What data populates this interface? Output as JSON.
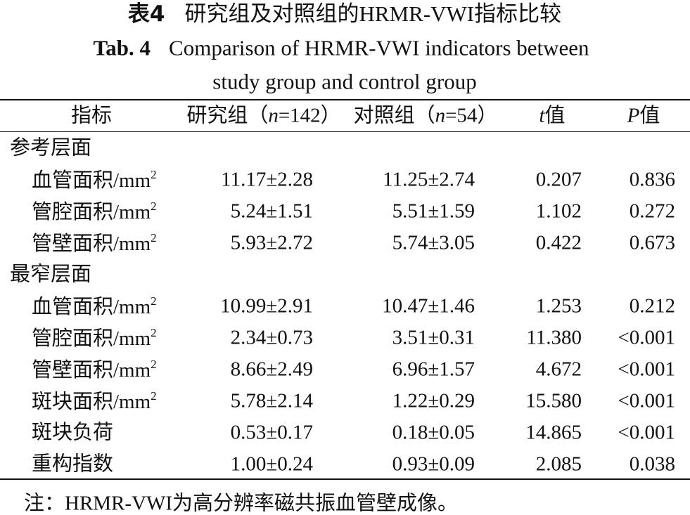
{
  "title_cn": [
    {
      "text": "表4",
      "bold": true
    },
    {
      "text": "研究组及对照组的HRMR-VWI指标比较"
    }
  ],
  "title_en": [
    {
      "text": "Tab. 4",
      "bold": true
    },
    {
      "text": "Comparison of HRMR-VWI indicators between"
    }
  ],
  "title_en_line2": "study group and control group",
  "table": {
    "header": [
      [
        {
          "text": "指标"
        }
      ],
      [
        {
          "text": "研究组（"
        },
        {
          "text": "n",
          "italic": true
        },
        {
          "text": "=142）"
        }
      ],
      [
        {
          "text": "对照组（"
        },
        {
          "text": "n",
          "italic": true
        },
        {
          "text": "=54）"
        }
      ],
      [
        {
          "text": "t",
          "italic": true
        },
        {
          "text": "值"
        }
      ],
      [
        {
          "text": "P",
          "italic": true
        },
        {
          "text": "值"
        }
      ]
    ],
    "sections": [
      {
        "name": "参考层面",
        "rows": [
          {
            "label": "血管面积/mm",
            "sup": "2",
            "cells": [
              "11.17±2.28",
              "11.25±2.74",
              "0.207",
              "0.836"
            ]
          },
          {
            "label": "管腔面积/mm",
            "sup": "2",
            "cells": [
              "5.24±1.51",
              "5.51±1.59",
              "1.102",
              "0.272"
            ]
          },
          {
            "label": "管壁面积/mm",
            "sup": "2",
            "cells": [
              "5.93±2.72",
              "5.74±3.05",
              "0.422",
              "0.673"
            ]
          }
        ]
      },
      {
        "name": "最窄层面",
        "rows": [
          {
            "label": "血管面积/mm",
            "sup": "2",
            "cells": [
              "10.99±2.91",
              "10.47±1.46",
              "1.253",
              "0.212"
            ]
          },
          {
            "label": "管腔面积/mm",
            "sup": "2",
            "cells": [
              "2.34±0.73",
              "3.51±0.31",
              "11.380",
              "<0.001"
            ]
          },
          {
            "label": "管壁面积/mm",
            "sup": "2",
            "cells": [
              "8.66±2.49",
              "6.96±1.57",
              "4.672",
              "<0.001"
            ]
          },
          {
            "label": "斑块面积/mm",
            "sup": "2",
            "cells": [
              "5.78±2.14",
              "1.22±0.29",
              "15.580",
              "<0.001"
            ]
          },
          {
            "label": "斑块负荷",
            "cells": [
              "0.53±0.17",
              "0.18±0.05",
              "14.865",
              "<0.001"
            ]
          },
          {
            "label": "重构指数",
            "cells": [
              "1.00±0.24",
              "0.93±0.09",
              "2.085",
              "0.038"
            ]
          }
        ]
      }
    ]
  },
  "note": "注：HRMR-VWI为高分辨率磁共振血管壁成像。"
}
